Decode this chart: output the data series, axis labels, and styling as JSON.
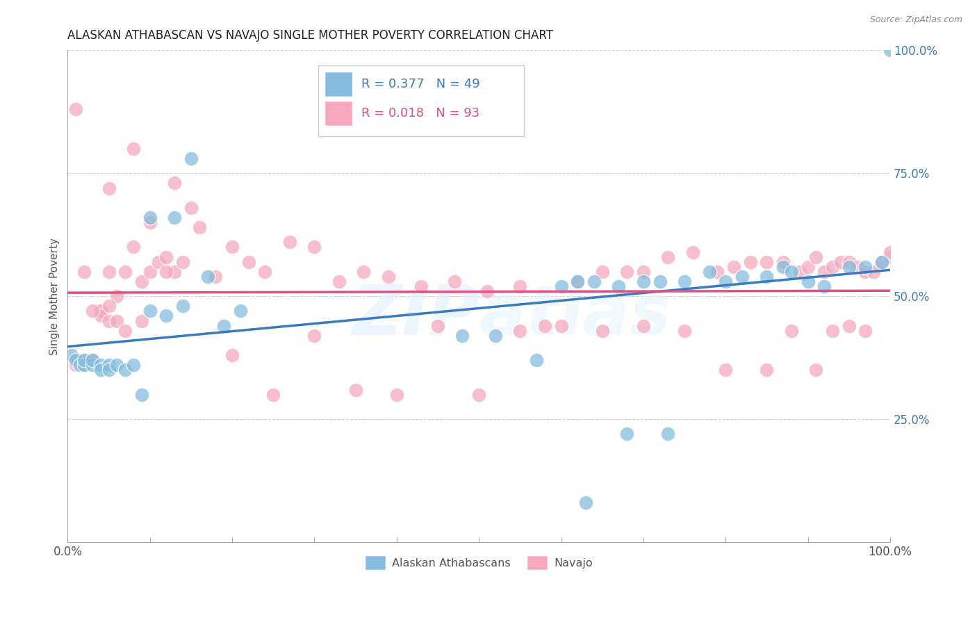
{
  "title": "ALASKAN ATHABASCAN VS NAVAJO SINGLE MOTHER POVERTY CORRELATION CHART",
  "source": "Source: ZipAtlas.com",
  "ylabel": "Single Mother Poverty",
  "legend_blue_label": "Alaskan Athabascans",
  "legend_pink_label": "Navajo",
  "blue_color": "#85bcde",
  "pink_color": "#f5a8be",
  "blue_line_color": "#3a7abf",
  "pink_line_color": "#e05080",
  "blue_scatter_edge": "#aaccee",
  "pink_scatter_edge": "#f8c0d0",
  "watermark_color": "#d8e8f0",
  "blue_x": [
    0.005,
    0.01,
    0.015,
    0.02,
    0.02,
    0.03,
    0.03,
    0.04,
    0.04,
    0.05,
    0.05,
    0.06,
    0.07,
    0.08,
    0.09,
    0.1,
    0.12,
    0.14,
    0.15,
    0.17,
    0.19,
    0.21,
    0.1,
    0.13,
    0.6,
    0.62,
    0.64,
    0.67,
    0.7,
    0.72,
    0.75,
    0.78,
    0.8,
    0.82,
    0.85,
    0.87,
    0.88,
    0.9,
    0.92,
    0.95,
    0.97,
    0.99,
    1.0,
    0.68,
    0.73,
    0.63,
    0.57,
    0.52,
    0.48
  ],
  "blue_y": [
    0.38,
    0.37,
    0.36,
    0.36,
    0.37,
    0.36,
    0.37,
    0.36,
    0.35,
    0.36,
    0.35,
    0.36,
    0.35,
    0.36,
    0.3,
    0.47,
    0.46,
    0.48,
    0.78,
    0.54,
    0.44,
    0.47,
    0.66,
    0.66,
    0.52,
    0.53,
    0.53,
    0.52,
    0.53,
    0.53,
    0.53,
    0.55,
    0.53,
    0.54,
    0.54,
    0.56,
    0.55,
    0.53,
    0.52,
    0.56,
    0.56,
    0.57,
    1.0,
    0.22,
    0.22,
    0.08,
    0.37,
    0.42,
    0.42
  ],
  "pink_x": [
    0.01,
    0.01,
    0.02,
    0.02,
    0.02,
    0.02,
    0.02,
    0.03,
    0.03,
    0.04,
    0.04,
    0.04,
    0.05,
    0.05,
    0.06,
    0.07,
    0.08,
    0.09,
    0.1,
    0.11,
    0.12,
    0.13,
    0.14,
    0.16,
    0.18,
    0.2,
    0.22,
    0.24,
    0.27,
    0.3,
    0.33,
    0.36,
    0.39,
    0.43,
    0.47,
    0.51,
    0.55,
    0.58,
    0.62,
    0.65,
    0.68,
    0.7,
    0.73,
    0.76,
    0.79,
    0.81,
    0.83,
    0.85,
    0.87,
    0.89,
    0.9,
    0.91,
    0.92,
    0.93,
    0.94,
    0.95,
    0.96,
    0.97,
    0.98,
    0.99,
    1.0,
    1.0,
    0.01,
    0.05,
    0.08,
    0.1,
    0.15,
    0.2,
    0.25,
    0.3,
    0.35,
    0.4,
    0.45,
    0.5,
    0.55,
    0.6,
    0.65,
    0.7,
    0.75,
    0.8,
    0.85,
    0.88,
    0.91,
    0.93,
    0.95,
    0.97,
    0.13,
    0.06,
    0.03,
    0.05,
    0.07,
    0.09,
    0.12
  ],
  "pink_y": [
    0.37,
    0.36,
    0.36,
    0.36,
    0.37,
    0.37,
    0.55,
    0.37,
    0.37,
    0.47,
    0.47,
    0.46,
    0.45,
    0.55,
    0.45,
    0.43,
    0.6,
    0.53,
    0.55,
    0.57,
    0.58,
    0.55,
    0.57,
    0.64,
    0.54,
    0.6,
    0.57,
    0.55,
    0.61,
    0.6,
    0.53,
    0.55,
    0.54,
    0.52,
    0.53,
    0.51,
    0.52,
    0.44,
    0.53,
    0.55,
    0.55,
    0.55,
    0.58,
    0.59,
    0.55,
    0.56,
    0.57,
    0.57,
    0.57,
    0.55,
    0.56,
    0.58,
    0.55,
    0.56,
    0.57,
    0.57,
    0.56,
    0.55,
    0.55,
    0.57,
    0.58,
    0.59,
    0.88,
    0.72,
    0.8,
    0.65,
    0.68,
    0.38,
    0.3,
    0.42,
    0.31,
    0.3,
    0.44,
    0.3,
    0.43,
    0.44,
    0.43,
    0.44,
    0.43,
    0.35,
    0.35,
    0.43,
    0.35,
    0.43,
    0.44,
    0.43,
    0.73,
    0.5,
    0.47,
    0.48,
    0.55,
    0.45,
    0.55
  ],
  "x_ticks": [
    0.0,
    0.1,
    0.2,
    0.3,
    0.4,
    0.5,
    0.6,
    0.7,
    0.8,
    0.9,
    1.0
  ],
  "y_ticks": [
    0.0,
    0.25,
    0.5,
    0.75,
    1.0
  ],
  "y_tick_labels": [
    "",
    "25.0%",
    "50.0%",
    "75.0%",
    "100.0%"
  ]
}
